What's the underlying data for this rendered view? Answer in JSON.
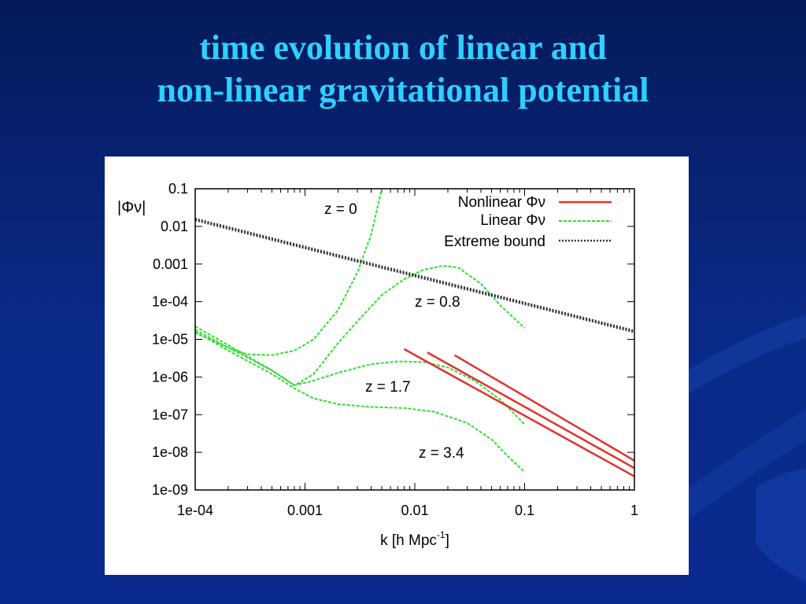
{
  "slide": {
    "title_line1": "time evolution of linear and",
    "title_line2": "non-linear gravitational potential"
  },
  "colors": {
    "background": "#0a2a88",
    "title": "#2fd0ff",
    "nonlinear": "#e53030",
    "linear": "#33dd33",
    "bound": "#333333"
  },
  "chart_data": {
    "type": "line",
    "xlabel": "k [h Mpc",
    "xlabel_sup": "-1",
    "xlabel_end": "]",
    "ylabel": "|Φν|",
    "xscale": "log",
    "yscale": "log",
    "xlim": [
      0.0001,
      1
    ],
    "ylim": [
      1e-09,
      0.1
    ],
    "x_ticks": [
      "1e-04",
      "0.001",
      "0.01",
      "0.1",
      "1"
    ],
    "y_ticks": [
      "0.1",
      "0.01",
      "0.001",
      "1e-04",
      "1e-05",
      "1e-06",
      "1e-07",
      "1e-08",
      "1e-09"
    ],
    "legend_position": "top-right",
    "legend": [
      {
        "label": "Nonlinear Φν",
        "style": "solid",
        "color": "#e53030"
      },
      {
        "label": "Linear Φν",
        "style": "dashed",
        "color": "#33dd33"
      },
      {
        "label": "Extreme bound",
        "style": "dotted",
        "color": "#333333"
      }
    ],
    "annotations": [
      "z = 0",
      "z = 0.8",
      "z = 1.7",
      "z = 3.4"
    ],
    "series": [
      {
        "group": "Linear Φν",
        "x": [
          0.0001,
          0.0002,
          0.0003,
          0.0005,
          0.0008,
          0.0012,
          0.002,
          0.003,
          0.004,
          0.005
        ],
        "y": [
          1.5e-05,
          6e-06,
          4e-06,
          3.8e-06,
          5e-06,
          1e-05,
          6e-05,
          0.0006,
          0.006,
          0.1
        ]
      },
      {
        "group": "Linear Φν",
        "x": [
          0.0001,
          0.0002,
          0.0005,
          0.0008,
          0.0012,
          0.002,
          0.003,
          0.005,
          0.008,
          0.012,
          0.018,
          0.025,
          0.04,
          0.06,
          0.1
        ],
        "y": [
          2.2e-05,
          7e-06,
          1.5e-06,
          6e-07,
          1.2e-06,
          8e-06,
          3e-05,
          0.00015,
          0.0004,
          0.0007,
          0.0009,
          0.0008,
          0.0003,
          8e-05,
          2e-05
        ]
      },
      {
        "group": "Linear Φν",
        "x": [
          0.0001,
          0.0002,
          0.0005,
          0.0008,
          0.0012,
          0.002,
          0.004,
          0.007,
          0.012,
          0.02,
          0.035,
          0.06,
          0.1
        ],
        "y": [
          1.8e-05,
          6e-06,
          1.5e-06,
          6e-07,
          8e-07,
          1.3e-06,
          2.2e-06,
          2.6e-06,
          2.5e-06,
          1.8e-06,
          8e-07,
          2.5e-07,
          5.5e-08
        ]
      },
      {
        "group": "Linear Φν",
        "x": [
          0.0001,
          0.0002,
          0.0005,
          0.0008,
          0.0012,
          0.002,
          0.004,
          0.008,
          0.015,
          0.03,
          0.05,
          0.07,
          0.1
        ],
        "y": [
          1.6e-05,
          5e-06,
          1.2e-06,
          5e-07,
          2.7e-07,
          1.9e-07,
          1.6e-07,
          1.5e-07,
          1.2e-07,
          6e-08,
          2.2e-08,
          8e-09,
          3e-09
        ]
      },
      {
        "group": "Nonlinear Φν",
        "x": [
          0.008,
          1
        ],
        "y": [
          5.5e-06,
          2.3e-09
        ]
      },
      {
        "group": "Nonlinear Φν",
        "x": [
          0.013,
          1
        ],
        "y": [
          4.5e-06,
          3.8e-09
        ]
      },
      {
        "group": "Nonlinear Φν",
        "x": [
          0.023,
          1
        ],
        "y": [
          3.8e-06,
          6e-09
        ]
      },
      {
        "group": "Extreme bound",
        "x": [
          0.0001,
          1
        ],
        "y": [
          0.016,
          1.7e-05
        ]
      },
      {
        "group": "Extreme bound",
        "x": [
          0.0001,
          1
        ],
        "y": [
          0.0145,
          1.55e-05
        ]
      }
    ]
  }
}
